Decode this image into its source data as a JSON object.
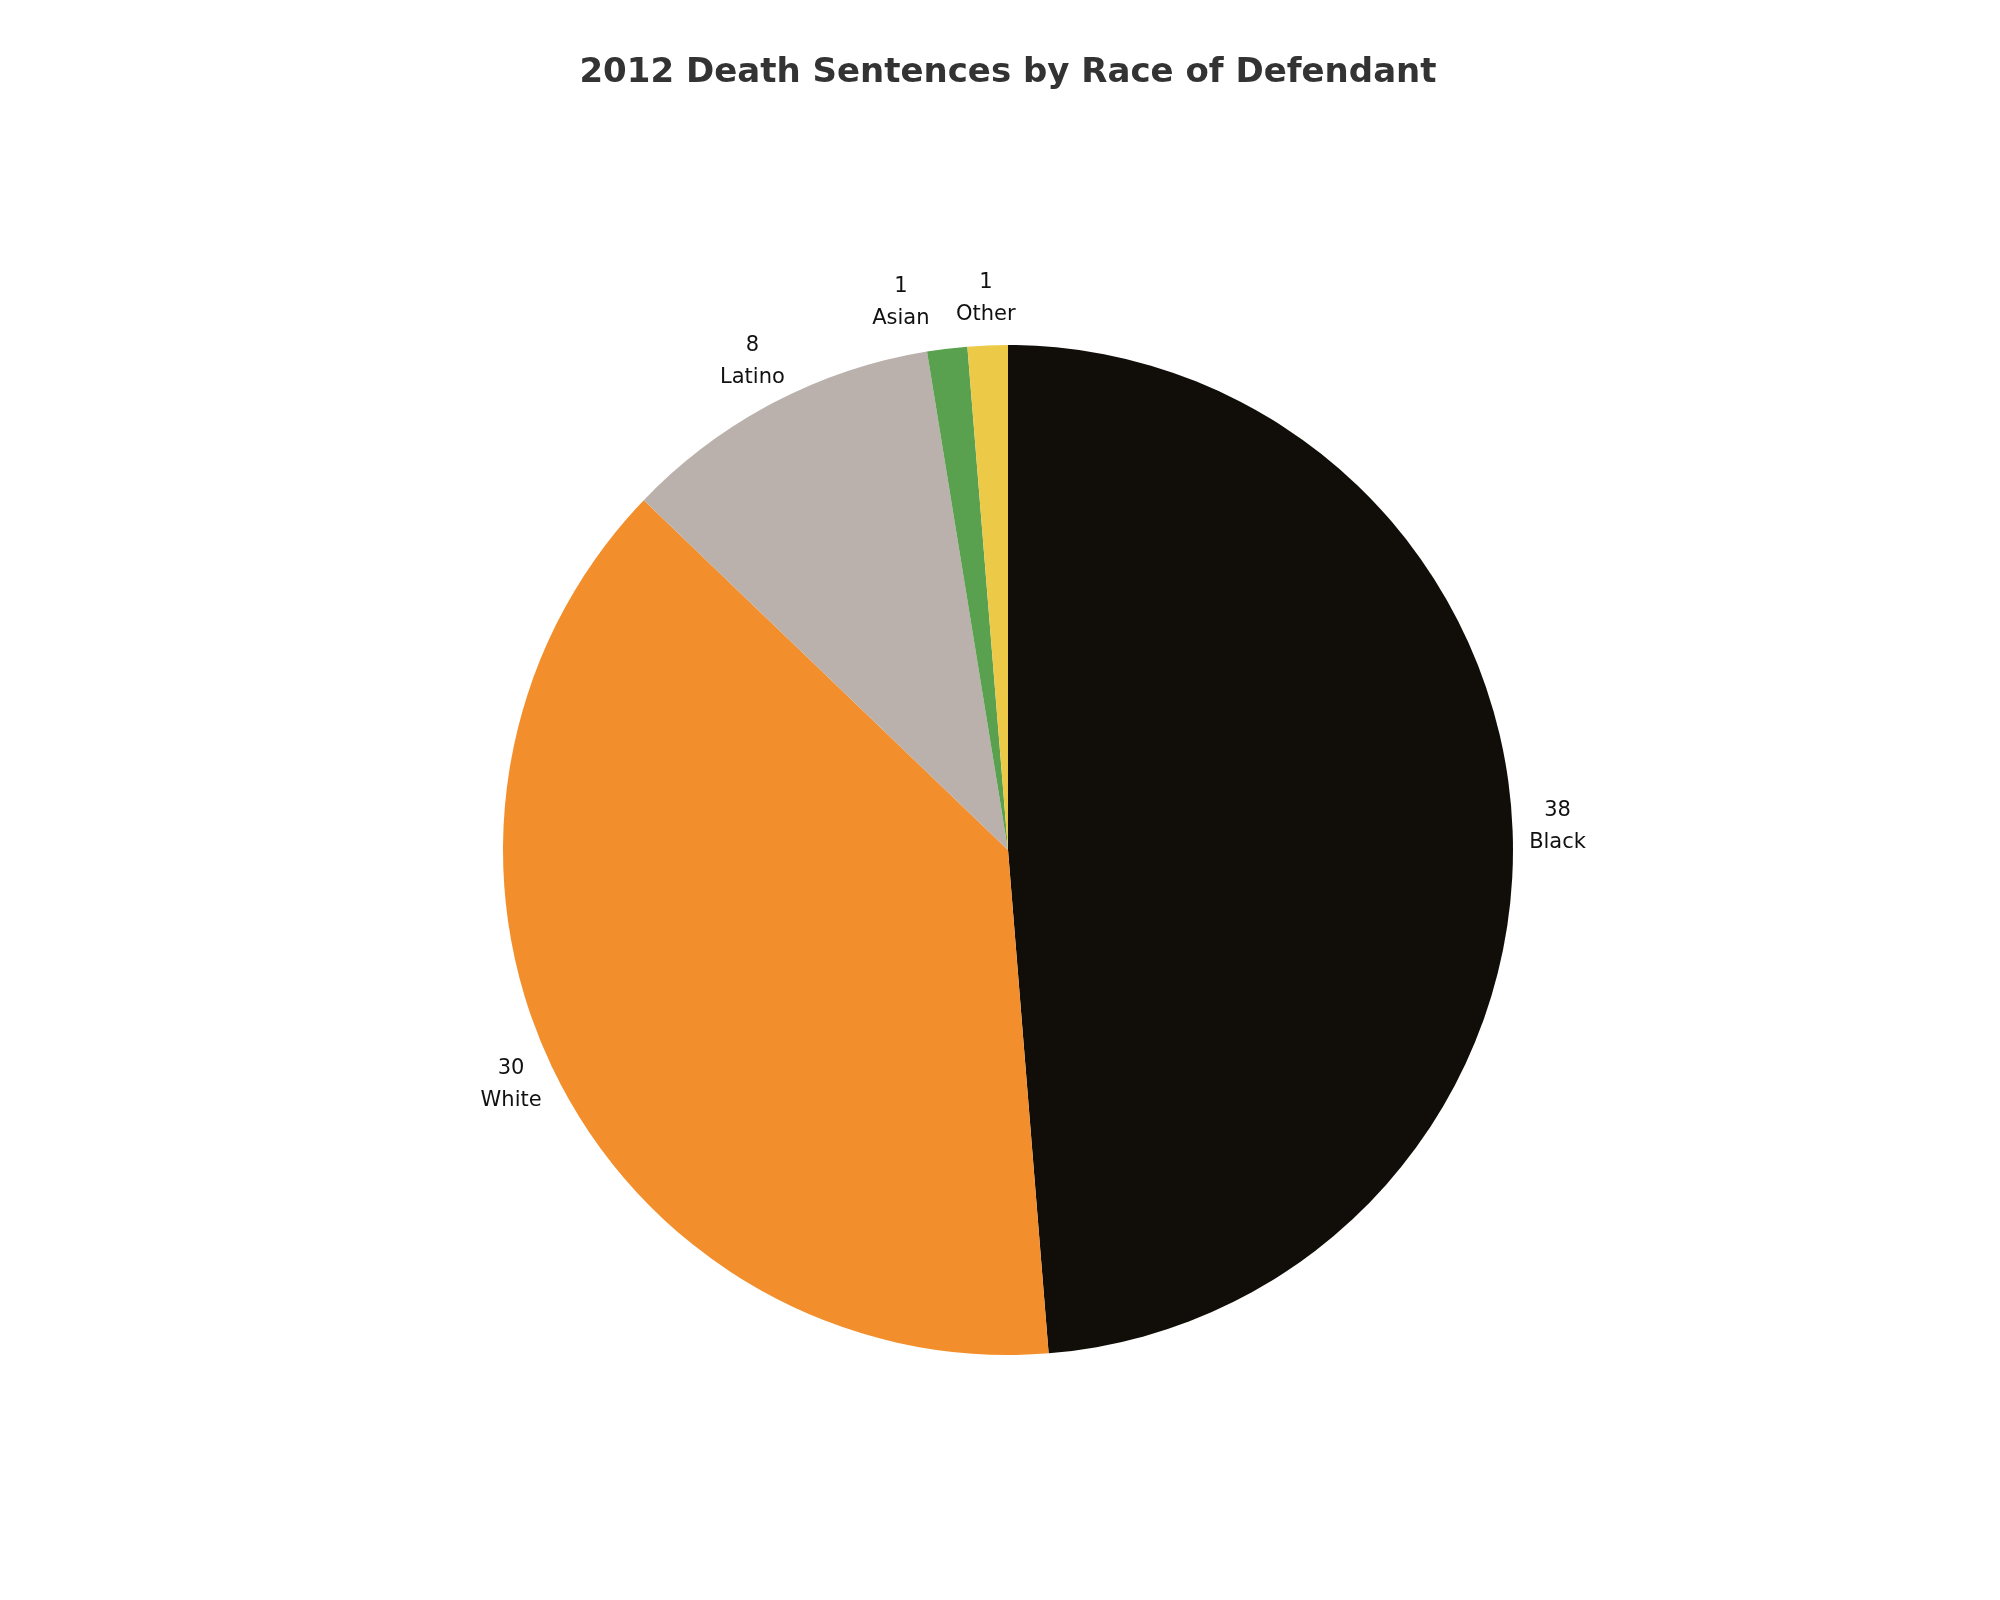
{
  "chart_data": {
    "type": "pie",
    "title": "2012 Death Sentences by Race of Defendant",
    "categories": [
      "Black",
      "White",
      "Latino",
      "Asian",
      "Other"
    ],
    "values": [
      38,
      30,
      8,
      1,
      1
    ],
    "colors": [
      "#110e09",
      "#f28e2b",
      "#bab0ac",
      "#59a14f",
      "#edc948"
    ],
    "data_labels": true
  }
}
